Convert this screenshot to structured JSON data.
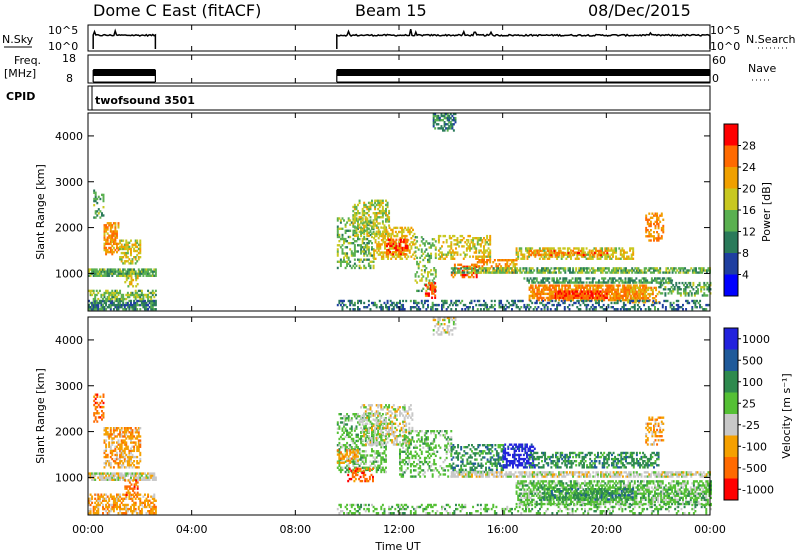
{
  "header": {
    "title": "Dome C East (fitACF)",
    "beam": "Beam 15",
    "date": "08/Dec/2015"
  },
  "ctrl_left": {
    "nsky": "N.Sky",
    "freq": "Freq.",
    "freq_unit": "[MHz]",
    "cpid": "CPID"
  },
  "ctrl_right": {
    "nsearch": "N.Search",
    "nave": "Nave"
  },
  "noise_ticks": {
    "top": "10^5",
    "bottom": "10^0"
  },
  "freq_ticks": {
    "top": "18",
    "bottom": "8"
  },
  "nave_ticks": {
    "top": "60",
    "bottom": "0"
  },
  "cpid_label": "twofsound 3501",
  "xlabel": "Time UT",
  "colors": {
    "power": [
      "#0000ff",
      "#1f3fa0",
      "#2a7a5a",
      "#5ab050",
      "#c8c820",
      "#f0a000",
      "#ff6a00",
      "#ff0000"
    ],
    "velocity": [
      "#2222dd",
      "#1f5a9a",
      "#2e8a4e",
      "#55c035",
      "#c8c8c8",
      "#f5a000",
      "#ff6a00",
      "#ff0000"
    ]
  },
  "chart_data": [
    {
      "type": "heatmap",
      "title": "Power",
      "ylabel": "Slant Range [km]",
      "xlabel": "",
      "xlim": [
        0,
        24
      ],
      "ylim": [
        180,
        4500
      ],
      "x_ticks": [
        0,
        4,
        8,
        12,
        16,
        20,
        24
      ],
      "x_tick_labels": [
        "00:00",
        "04:00",
        "08:00",
        "12:00",
        "16:00",
        "20:00",
        "00:00"
      ],
      "y_ticks": [
        1000,
        2000,
        3000,
        4000
      ],
      "y_tick_labels": [
        "1000",
        "2000",
        "3000",
        "4000"
      ],
      "colorbar": {
        "label": "Power [dB]",
        "ticks": [
          4,
          8,
          12,
          16,
          20,
          24,
          28
        ],
        "tick_labels": [
          "4",
          "8",
          "12",
          "16",
          "20",
          "24",
          "28"
        ],
        "range": [
          0,
          32
        ]
      },
      "regions": [
        {
          "t0": 0.0,
          "t1": 2.6,
          "r0": 930,
          "r1": 1080,
          "v": 14,
          "d": 0.85
        },
        {
          "t0": 0.0,
          "t1": 2.6,
          "r0": 200,
          "r1": 420,
          "v": 10,
          "d": 0.75
        },
        {
          "t0": 0.0,
          "t1": 2.6,
          "r0": 420,
          "r1": 640,
          "v": 15,
          "d": 0.55
        },
        {
          "t0": 0.2,
          "t1": 0.6,
          "r0": 2200,
          "r1": 2800,
          "v": 13,
          "d": 0.35
        },
        {
          "t0": 0.6,
          "t1": 1.2,
          "r0": 1400,
          "r1": 2100,
          "v": 23,
          "d": 0.6
        },
        {
          "t0": 1.2,
          "t1": 2.0,
          "r0": 1200,
          "r1": 1700,
          "v": 18,
          "d": 0.55
        },
        {
          "t0": 1.4,
          "t1": 1.9,
          "r0": 700,
          "r1": 950,
          "v": 18,
          "d": 0.5
        },
        {
          "t0": 9.6,
          "t1": 11.0,
          "r0": 1100,
          "r1": 2200,
          "v": 14,
          "d": 0.4
        },
        {
          "t0": 10.2,
          "t1": 11.6,
          "r0": 1800,
          "r1": 2600,
          "v": 17,
          "d": 0.45
        },
        {
          "t0": 11.0,
          "t1": 12.6,
          "r0": 1300,
          "r1": 2000,
          "v": 20,
          "d": 0.45
        },
        {
          "t0": 11.5,
          "t1": 12.3,
          "r0": 1400,
          "r1": 1750,
          "v": 27,
          "d": 0.55
        },
        {
          "t0": 12.6,
          "t1": 13.4,
          "r0": 600,
          "r1": 1800,
          "v": 15,
          "d": 0.3
        },
        {
          "t0": 13.0,
          "t1": 13.4,
          "r0": 450,
          "r1": 800,
          "v": 27,
          "d": 0.6
        },
        {
          "t0": 13.3,
          "t1": 14.2,
          "r0": 4100,
          "r1": 4500,
          "v": 10,
          "d": 0.5
        },
        {
          "t0": 13.5,
          "t1": 15.5,
          "r0": 1300,
          "r1": 1800,
          "v": 19,
          "d": 0.4
        },
        {
          "t0": 14.0,
          "t1": 15.0,
          "r0": 900,
          "r1": 1200,
          "v": 26,
          "d": 0.5
        },
        {
          "t0": 15.0,
          "t1": 16.5,
          "r0": 1000,
          "r1": 1300,
          "v": 23,
          "d": 0.55
        },
        {
          "t0": 16.5,
          "t1": 21.0,
          "r0": 1300,
          "r1": 1550,
          "v": 19,
          "d": 0.55
        },
        {
          "t0": 17.0,
          "t1": 20.0,
          "r0": 1380,
          "r1": 1500,
          "v": 25,
          "d": 0.5
        },
        {
          "t0": 14.0,
          "t1": 24.0,
          "r0": 1000,
          "r1": 1120,
          "v": 14,
          "d": 0.7
        },
        {
          "t0": 16.8,
          "t1": 22.5,
          "r0": 780,
          "r1": 900,
          "v": 12,
          "d": 0.6
        },
        {
          "t0": 17.0,
          "t1": 21.5,
          "r0": 400,
          "r1": 720,
          "v": 24,
          "d": 0.75
        },
        {
          "t0": 18.0,
          "t1": 20.0,
          "r0": 450,
          "r1": 600,
          "v": 28,
          "d": 0.7
        },
        {
          "t0": 20.8,
          "t1": 22.0,
          "r0": 350,
          "r1": 700,
          "v": 22,
          "d": 0.5
        },
        {
          "t0": 9.6,
          "t1": 24.0,
          "r0": 200,
          "r1": 420,
          "v": 9,
          "d": 0.35
        },
        {
          "t0": 21.5,
          "t1": 22.2,
          "r0": 1700,
          "r1": 2300,
          "v": 24,
          "d": 0.4
        },
        {
          "t0": 22.0,
          "t1": 24.0,
          "r0": 500,
          "r1": 800,
          "v": 13,
          "d": 0.45
        }
      ]
    },
    {
      "type": "heatmap",
      "title": "Velocity",
      "ylabel": "Slant Range [km]",
      "xlabel": "Time UT",
      "xlim": [
        0,
        24
      ],
      "ylim": [
        180,
        4500
      ],
      "x_ticks": [
        0,
        4,
        8,
        12,
        16,
        20,
        24
      ],
      "x_tick_labels": [
        "00:00",
        "04:00",
        "08:00",
        "12:00",
        "16:00",
        "20:00",
        "00:00"
      ],
      "y_ticks": [
        1000,
        2000,
        3000,
        4000
      ],
      "y_tick_labels": [
        "1000",
        "2000",
        "3000",
        "4000"
      ],
      "colorbar": {
        "label": "Velocity [m s⁻¹]",
        "ticks": [
          1000,
          500,
          100,
          25,
          -25,
          -100,
          -500,
          -1000
        ],
        "tick_labels": [
          "1000",
          "500",
          "100",
          "25",
          "-25",
          "-100",
          "-500",
          "-1000"
        ],
        "range": [
          -1200,
          1200
        ]
      },
      "regions": [
        {
          "t0": 0.0,
          "t1": 2.6,
          "r0": 930,
          "r1": 1080,
          "v": 4,
          "d": 0.8
        },
        {
          "t0": 0.0,
          "t1": 2.6,
          "r0": 200,
          "r1": 640,
          "v": 5,
          "d": 0.55
        },
        {
          "t0": 0.2,
          "t1": 0.6,
          "r0": 2200,
          "r1": 2800,
          "v": 6,
          "d": 0.35
        },
        {
          "t0": 0.6,
          "t1": 2.0,
          "r0": 1200,
          "r1": 2100,
          "v": 5,
          "d": 0.55
        },
        {
          "t0": 1.4,
          "t1": 1.9,
          "r0": 600,
          "r1": 950,
          "v": 6,
          "d": 0.5
        },
        {
          "t0": 9.6,
          "t1": 11.5,
          "r0": 1100,
          "r1": 2400,
          "v": 3,
          "d": 0.4
        },
        {
          "t0": 10.5,
          "t1": 12.5,
          "r0": 1700,
          "r1": 2600,
          "v": 4,
          "d": 0.4
        },
        {
          "t0": 9.6,
          "t1": 10.4,
          "r0": 1300,
          "r1": 1600,
          "v": 5,
          "d": 0.45
        },
        {
          "t0": 12.0,
          "t1": 14.0,
          "r0": 1000,
          "r1": 2000,
          "v": 3,
          "d": 0.35
        },
        {
          "t0": 13.3,
          "t1": 14.2,
          "r0": 4100,
          "r1": 4500,
          "v": 4,
          "d": 0.4
        },
        {
          "t0": 14.0,
          "t1": 16.0,
          "r0": 1100,
          "r1": 1700,
          "v": 2,
          "d": 0.45
        },
        {
          "t0": 16.0,
          "t1": 17.2,
          "r0": 1200,
          "r1": 1700,
          "v": 0,
          "d": 0.55
        },
        {
          "t0": 17.0,
          "t1": 22.0,
          "r0": 1200,
          "r1": 1550,
          "v": 2,
          "d": 0.5
        },
        {
          "t0": 14.0,
          "t1": 24.0,
          "r0": 1000,
          "r1": 1120,
          "v": 4,
          "d": 0.7
        },
        {
          "t0": 16.5,
          "t1": 24.0,
          "r0": 400,
          "r1": 900,
          "v": 3,
          "d": 0.65
        },
        {
          "t0": 17.5,
          "t1": 21.0,
          "r0": 500,
          "r1": 750,
          "v": 2,
          "d": 0.5
        },
        {
          "t0": 21.5,
          "t1": 22.2,
          "r0": 1700,
          "r1": 2300,
          "v": 5,
          "d": 0.4
        },
        {
          "t0": 9.6,
          "t1": 24.0,
          "r0": 200,
          "r1": 420,
          "v": 3,
          "d": 0.3
        },
        {
          "t0": 10.0,
          "t1": 11.0,
          "r0": 900,
          "r1": 1200,
          "v": 6,
          "d": 0.35
        }
      ]
    }
  ]
}
